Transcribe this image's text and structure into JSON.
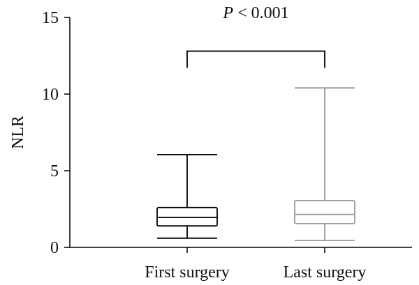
{
  "chart_data": {
    "type": "box",
    "ylabel": "NLR",
    "ylim": [
      0,
      15
    ],
    "yticks": [
      0,
      5,
      10,
      15
    ],
    "categories": [
      "First surgery",
      "Last surgery"
    ],
    "boxes": [
      {
        "category": "First surgery",
        "min": 0.6,
        "q1": 1.4,
        "median": 1.95,
        "q3": 2.6,
        "max": 6.05,
        "color": "#000000"
      },
      {
        "category": "Last surgery",
        "min": 0.45,
        "q1": 1.55,
        "median": 2.15,
        "q3": 3.05,
        "max": 10.4,
        "color": "#9a9a9a"
      }
    ],
    "annotation": {
      "text_italic": "P",
      "text_rest": " < 0.001",
      "level": 12.8
    },
    "grid": false
  }
}
